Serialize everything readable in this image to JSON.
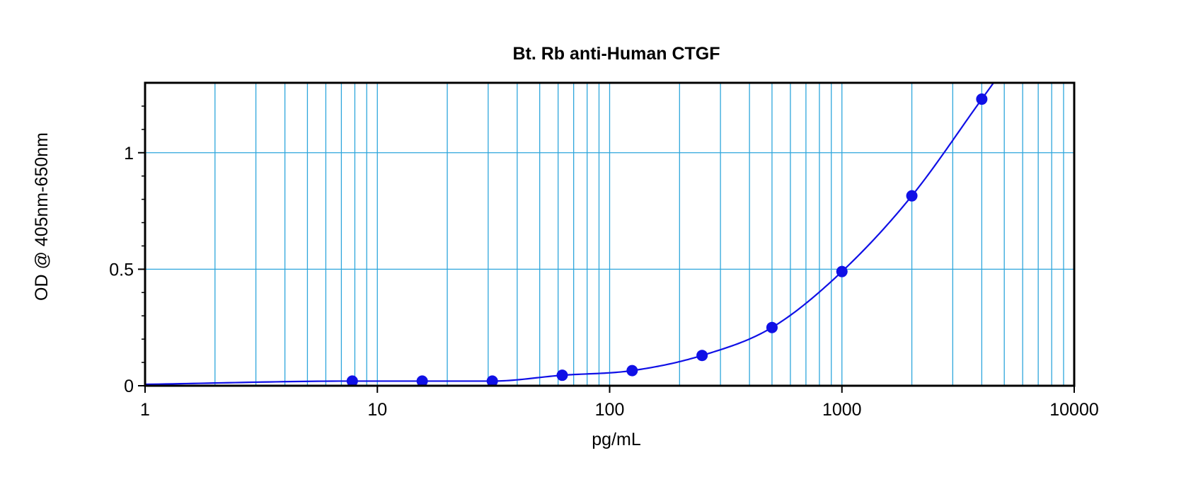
{
  "chart_data": {
    "type": "scatter",
    "title": "Bt. Rb anti-Human CTGF",
    "xlabel": "pg/mL",
    "ylabel": "OD @ 405nm-650nm",
    "x_scale": "log",
    "xlim": [
      1,
      10000
    ],
    "ylim": [
      0,
      1.3
    ],
    "x_ticks": [
      1,
      10,
      100,
      1000,
      10000
    ],
    "x_tick_labels": [
      "1",
      "10",
      "100",
      "1000",
      "10000"
    ],
    "y_ticks": [
      0,
      0.5,
      1
    ],
    "y_tick_labels": [
      "0",
      "0.5",
      "1"
    ],
    "grid": true,
    "legend": "none",
    "series": [
      {
        "x": [
          7.8,
          15.6,
          31.25,
          62.5,
          125,
          250,
          500,
          1000,
          2000,
          4000
        ],
        "y": [
          0.02,
          0.02,
          0.02,
          0.045,
          0.065,
          0.13,
          0.25,
          0.49,
          0.815,
          1.23
        ]
      }
    ],
    "colors": {
      "grid": "#2ea6dc",
      "series": "#1010e6",
      "frame": "#000000"
    }
  }
}
